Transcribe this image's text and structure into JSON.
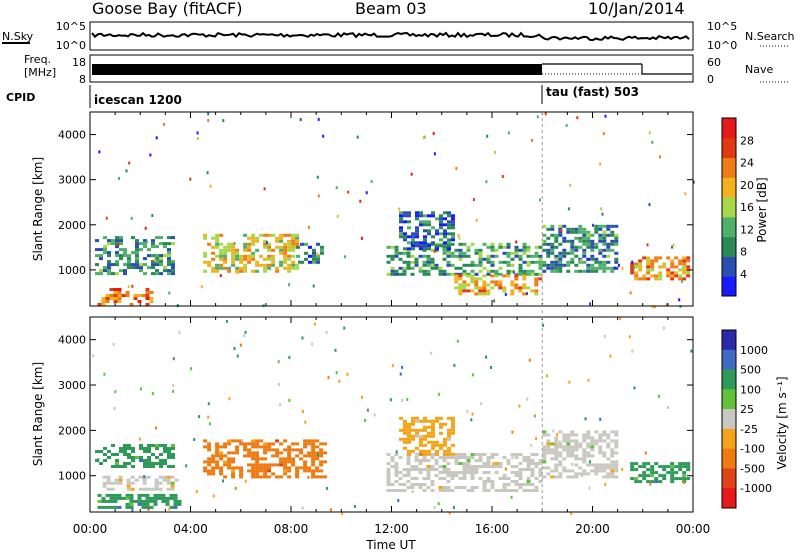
{
  "header": {
    "station": "Goose Bay (fitACF)",
    "beam": "Beam 03",
    "date": "10/Jan/2014"
  },
  "noise_panel": {
    "left_label": "N.Sky",
    "right_label": "N.Search",
    "left_ticks": [
      "10^5",
      "10^0"
    ],
    "right_ticks": [
      "10^5",
      "10^0"
    ]
  },
  "freq_panel": {
    "left_label_line1": "Freq.",
    "left_label_line2": "[MHz]",
    "right_label": "Nave",
    "left_ticks": [
      "18",
      "8"
    ],
    "right_ticks": [
      "60",
      "0"
    ]
  },
  "cpid_panel": {
    "label": "CPID",
    "segments": [
      {
        "name": "icescan 1200",
        "start_hour": 0.0,
        "end_hour": 18.0
      },
      {
        "name": "tau (fast) 503",
        "start_hour": 18.0,
        "end_hour": 24.0
      }
    ]
  },
  "colors": {
    "power_scale": [
      "#1a1aff",
      "#2b4fb0",
      "#2a8a55",
      "#4fb06a",
      "#a6d84a",
      "#f2b21e",
      "#ef7d17",
      "#e03a12",
      "#e61a1a"
    ],
    "velocity_scale": [
      "#2a2aa8",
      "#3f6ac2",
      "#2e9a5a",
      "#63c13a",
      "#c8c8c0",
      "#f5a318",
      "#ef7a12",
      "#e0421a",
      "#e61a1a"
    ]
  },
  "chart_data": [
    {
      "type": "heatmap",
      "quantity": "Power",
      "xlabel": "",
      "ylabel": "Slant Range [km]",
      "x_range_hours": [
        0,
        24
      ],
      "y_range_km": [
        200,
        4500
      ],
      "y_ticks": [
        "1000",
        "2000",
        "3000",
        "4000"
      ],
      "colorbar": {
        "title": "Power [dB]",
        "tick_labels": [
          "4",
          "8",
          "12",
          "16",
          "20",
          "24",
          "28"
        ],
        "range": [
          0,
          32
        ]
      },
      "echo_regions": [
        {
          "start_hour": 0.3,
          "end_hour": 2.4,
          "min_km": 250,
          "max_km": 600,
          "value": 24
        },
        {
          "start_hour": 0.2,
          "end_hour": 3.3,
          "min_km": 950,
          "max_km": 1750,
          "value": 10
        },
        {
          "start_hour": 4.5,
          "end_hour": 8.2,
          "min_km": 950,
          "max_km": 1800,
          "value": 18
        },
        {
          "start_hour": 8.2,
          "end_hour": 9.3,
          "min_km": 1200,
          "max_km": 1600,
          "value": 7
        },
        {
          "start_hour": 11.8,
          "end_hour": 17.9,
          "min_km": 900,
          "max_km": 1600,
          "value": 11
        },
        {
          "start_hour": 12.3,
          "end_hour": 14.5,
          "min_km": 1500,
          "max_km": 2300,
          "value": 7
        },
        {
          "start_hour": 14.5,
          "end_hour": 17.9,
          "min_km": 500,
          "max_km": 900,
          "value": 20
        },
        {
          "start_hour": 18.0,
          "end_hour": 21.0,
          "min_km": 1000,
          "max_km": 2000,
          "value": 9
        },
        {
          "start_hour": 21.5,
          "end_hour": 23.8,
          "min_km": 800,
          "max_km": 1300,
          "value": 22
        }
      ]
    },
    {
      "type": "heatmap",
      "quantity": "Velocity",
      "xlabel": "Time UT",
      "ylabel": "Slant Range [km]",
      "x_range_hours": [
        0,
        24
      ],
      "x_tick_labels": [
        "00:00",
        "04:00",
        "08:00",
        "12:00",
        "16:00",
        "20:00",
        "00:00"
      ],
      "y_range_km": [
        200,
        4500
      ],
      "y_ticks": [
        "1000",
        "2000",
        "3000",
        "4000"
      ],
      "colorbar": {
        "title": "Velocity [m s⁻¹]",
        "tick_labels": [
          "1000",
          "500",
          "100",
          "25",
          "-25",
          "-100",
          "-500",
          "-1000"
        ]
      },
      "echo_regions": [
        {
          "start_hour": 0.3,
          "end_hour": 3.5,
          "min_km": 300,
          "max_km": 600,
          "value": 300
        },
        {
          "start_hour": 0.2,
          "end_hour": 3.3,
          "min_km": 1200,
          "max_km": 1700,
          "value": 200
        },
        {
          "start_hour": 0.5,
          "end_hour": 3.5,
          "min_km": 700,
          "max_km": 1000,
          "value": 0
        },
        {
          "start_hour": 4.5,
          "end_hour": 9.3,
          "min_km": 950,
          "max_km": 1800,
          "value": -150
        },
        {
          "start_hour": 11.8,
          "end_hour": 17.9,
          "min_km": 700,
          "max_km": 1500,
          "value": 0
        },
        {
          "start_hour": 12.3,
          "end_hour": 14.5,
          "min_km": 1500,
          "max_km": 2300,
          "value": -100
        },
        {
          "start_hour": 18.0,
          "end_hour": 21.0,
          "min_km": 1000,
          "max_km": 2000,
          "value": 0
        },
        {
          "start_hour": 21.5,
          "end_hour": 23.8,
          "min_km": 900,
          "max_km": 1300,
          "value": 150
        }
      ]
    }
  ]
}
